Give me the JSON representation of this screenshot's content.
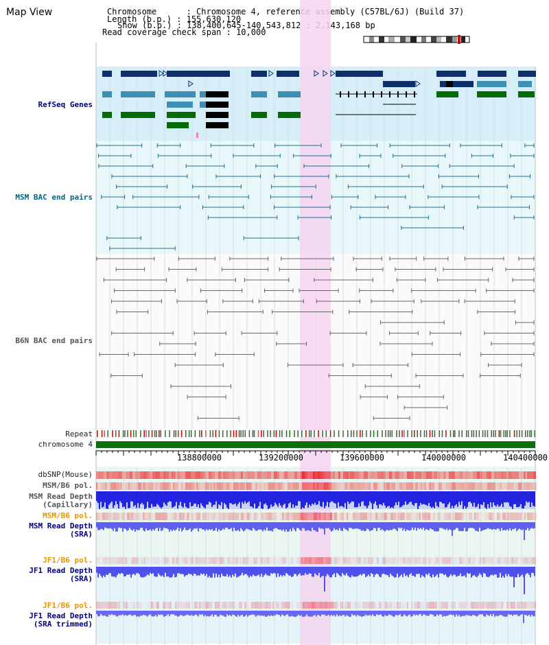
{
  "title": "Map View",
  "info": {
    "chromosome": "Chromosome      : Chromosome 4, reference assembly (C57BL/6J) (Build 37)",
    "length": "Length (b.p.) : 155,630,120",
    "show": "Show (b.p.) : 138,400,645-140,543,812 : 2,143,168 bp",
    "coverage": "Read coverage check span : 10,000"
  },
  "tracks": {
    "refseq": "RefSeq Genes",
    "msm_bac": "MSM BAC end pairs",
    "b6n_bac": "B6N BAC end pairs",
    "repeat": "Repeat",
    "chromosome": "chromosome 4",
    "dbsnp": "dbSNP(Mouse)",
    "msm_b6_pol": "MSM/B6 pol.",
    "msm_depth_cap_1": "MSM Read Depth",
    "msm_depth_cap_2": "(Capillary)",
    "msm_b6_pol_sra": "MSM/B6 pol.",
    "msm_depth_sra_1": "MSM Read Depth",
    "msm_depth_sra_2": "(SRA)",
    "jf1_b6_pol": "JF1/B6 pol.",
    "jf1_depth_1": "JF1 Read Depth",
    "jf1_depth_2": "(SRA)",
    "jf1_b6_pol_trim": "JF1/B6 pol.",
    "jf1_trim_1": "JF1 Read Depth",
    "jf1_trim_2": "(SRA trimmed)"
  },
  "axis_ticks": [
    "138800000",
    "139200000",
    "139600000",
    "140000000",
    "140400000"
  ],
  "colors": {
    "highlight": "#f5d5f0",
    "refseq_bg": "#d6eef8",
    "gene_dark": "#0d2f6b",
    "gene_mid": "#3f8fb5",
    "gene_green": "#056b05",
    "msm_line": "#1f6e8c",
    "b6n_line": "#666666",
    "chromosome_green": "#0a6e0a"
  }
}
